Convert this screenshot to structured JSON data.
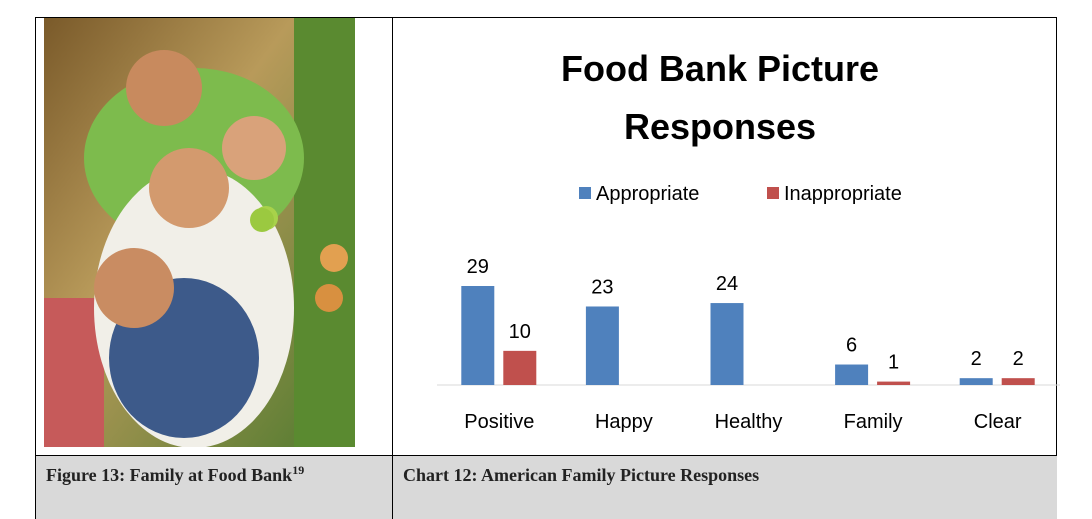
{
  "chart_data": {
    "type": "bar",
    "title": "Food Bank Picture Responses",
    "categories": [
      "Positive",
      "Happy",
      "Healthy",
      "Family",
      "Clear"
    ],
    "series": [
      {
        "name": "Appropriate",
        "color": "#4f81bd",
        "values": [
          29,
          23,
          24,
          6,
          2
        ]
      },
      {
        "name": "Inappropriate",
        "color": "#c0504d",
        "values": [
          10,
          null,
          null,
          1,
          2
        ]
      }
    ]
  },
  "captions": {
    "figure": {
      "text": "Figure 13: Family at Food Bank",
      "superscript": "19"
    },
    "chart": {
      "text": "Chart 12: American Family Picture Responses"
    }
  }
}
